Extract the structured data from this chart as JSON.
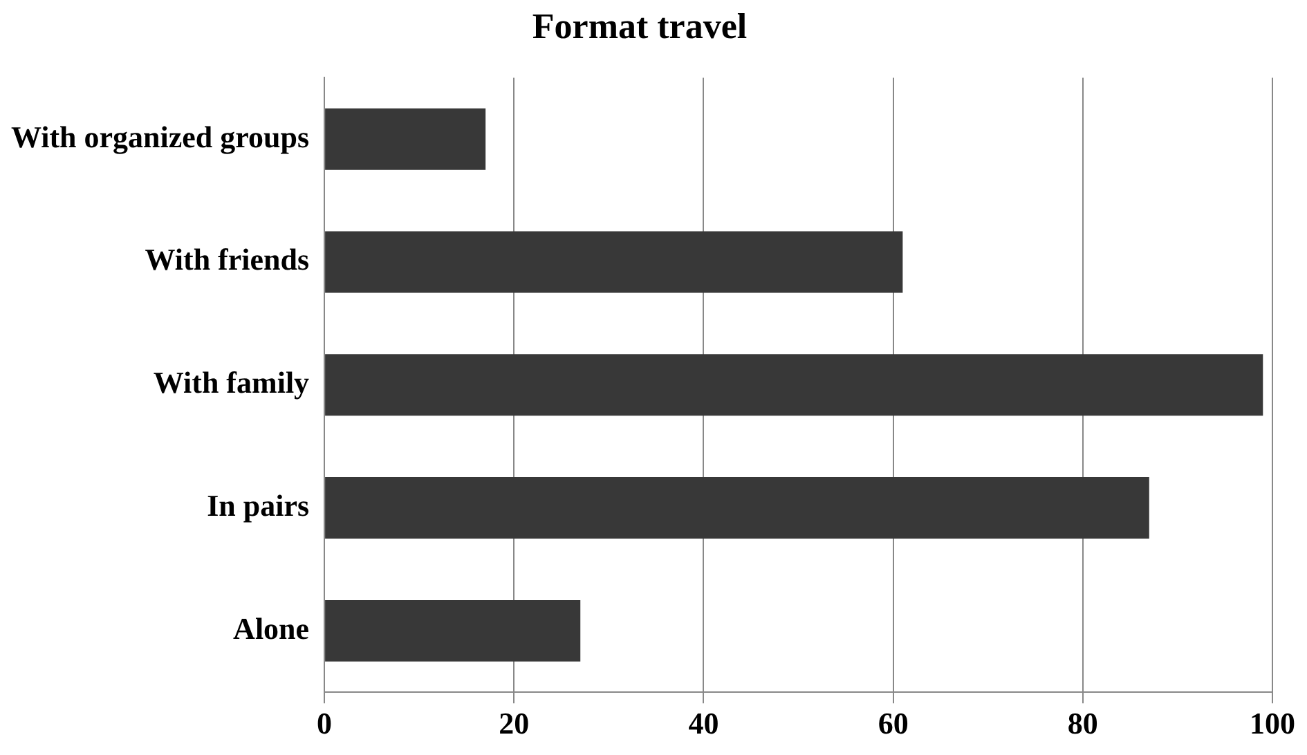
{
  "chart_data": {
    "type": "bar",
    "title": "Format travel",
    "orientation": "horizontal",
    "categories": [
      "With organized groups",
      "With friends",
      "With family",
      "In pairs",
      "Alone"
    ],
    "values": [
      17,
      61,
      99,
      87,
      27
    ],
    "color": "#383838",
    "xlim": [
      0,
      100
    ],
    "xticks": [
      0,
      20,
      40,
      60,
      80,
      100
    ],
    "grid": "x",
    "legend": false
  }
}
